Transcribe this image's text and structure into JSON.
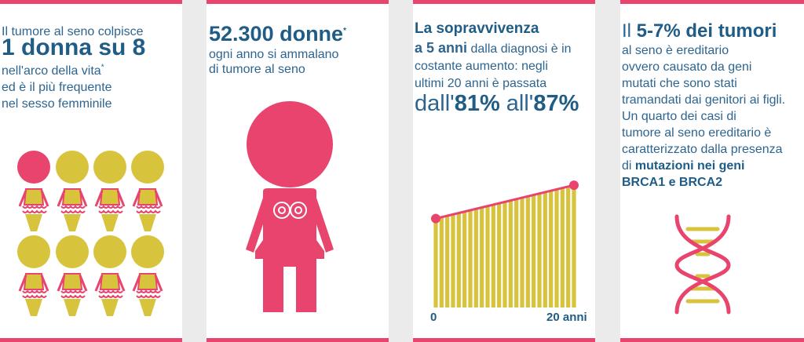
{
  "colors": {
    "pink": "#e9446d",
    "yellow": "#d8c33c",
    "blue": "#1f5c86",
    "divider": "#ebebeb"
  },
  "panel1": {
    "line1": "Il tumore al seno colpisce",
    "headline": "1 donna su 8",
    "line2": "nell'arco della vita",
    "asterisk": "*",
    "line3": "ed è il più frequente",
    "line4": "nel sesso femminile",
    "women_total": 8,
    "women_highlighted": 1
  },
  "panel2": {
    "headline": "52.300 donne",
    "asterisk": "*",
    "line1": "ogni anno si ammalano",
    "line2": "di tumore al seno"
  },
  "panel3": {
    "title": "La sopravvivenza",
    "emph": "a 5 anni",
    "text1": " dalla diagnosi è in",
    "text2": "costante aumento: negli",
    "text3": "ultimi 20 anni è passata",
    "pct_prefix": "dall'",
    "pct_from": "81%",
    "pct_mid": " all'",
    "pct_to": "87%",
    "axis_start": "0",
    "axis_end": "20 anni"
  },
  "chart_data": {
    "type": "area",
    "x": [
      0,
      20
    ],
    "values": [
      81,
      87
    ],
    "xlabel": "",
    "ylabel": "",
    "tick_labels": [
      "0",
      "20 anni"
    ]
  },
  "panel4": {
    "prefix": "Il ",
    "headline": "5-7% dei tumori",
    "l1": "al seno è ereditario",
    "l2": "ovvero causato da geni",
    "l3": "mutati che sono stati",
    "l4": "tramandati dai genitori ai figli.",
    "l5": "Un quarto dei casi di",
    "l6": "tumore al seno ereditario è",
    "l7": "caratterizzato dalla presenza",
    "l8_pre": "di ",
    "l8_bold": "mutazioni nei geni",
    "l9_bold": "BRCA1 e BRCA2"
  }
}
